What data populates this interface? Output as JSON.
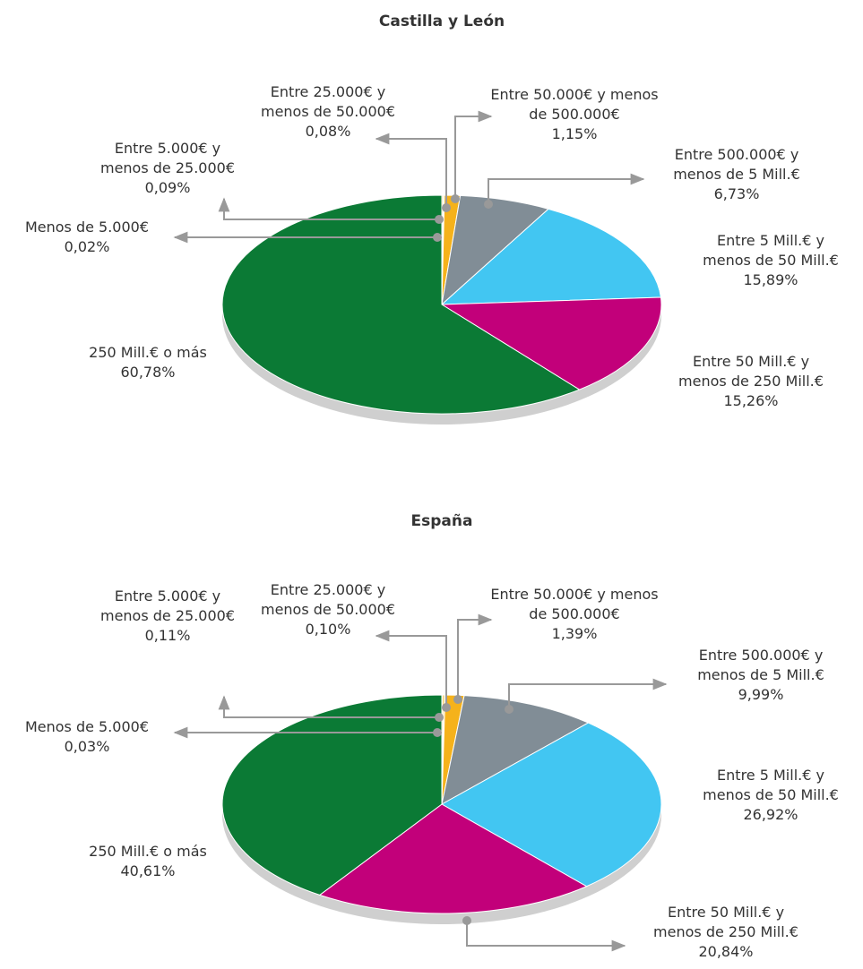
{
  "chart_data": [
    {
      "type": "pie",
      "title": "Castilla y León",
      "categories": [
        "Menos de 5.000€",
        "Entre 5.000€ y\nmenos de 25.000€",
        "Entre 25.000€ y\nmenos de 50.000€",
        "Entre 50.000€ y menos\nde 500.000€",
        "Entre 500.000€ y\nmenos de 5 Mill.€",
        "Entre 5 Mill.€ y\nmenos de 50 Mill.€",
        "Entre 50 Mill.€ y\nmenos de 250 Mill.€",
        "250 Mill.€ o más"
      ],
      "values": [
        0.02,
        0.09,
        0.08,
        1.15,
        6.73,
        15.89,
        15.26,
        60.78
      ],
      "value_labels": [
        "0,02%",
        "0,09%",
        "0,08%",
        "1,15%",
        "6,73%",
        "15,89%",
        "15,26%",
        "60,78%"
      ],
      "colors": [
        "#f5b21b",
        "#f5b21b",
        "#f5b21b",
        "#f5b21b",
        "#818d96",
        "#42c6f2",
        "#c2007a",
        "#0b7a35"
      ]
    },
    {
      "type": "pie",
      "title": "España",
      "categories": [
        "Menos de 5.000€",
        "Entre 5.000€ y\nmenos de 25.000€",
        "Entre 25.000€ y\nmenos de 50.000€",
        "Entre 50.000€ y menos\nde 500.000€",
        "Entre 500.000€ y\nmenos de 5 Mill.€",
        "Entre 5 Mill.€ y\nmenos de 50 Mill.€",
        "Entre 50 Mill.€ y\nmenos de 250 Mill.€",
        "250 Mill.€ o más"
      ],
      "values": [
        0.03,
        0.11,
        0.1,
        1.39,
        9.99,
        26.92,
        20.84,
        40.61
      ],
      "value_labels": [
        "0,03%",
        "0,11%",
        "0,10%",
        "1,39%",
        "9,99%",
        "26,92%",
        "20,84%",
        "40,61%"
      ],
      "colors": [
        "#f5b21b",
        "#f5b21b",
        "#f5b21b",
        "#f5b21b",
        "#818d96",
        "#42c6f2",
        "#c2007a",
        "#0b7a35"
      ]
    }
  ]
}
